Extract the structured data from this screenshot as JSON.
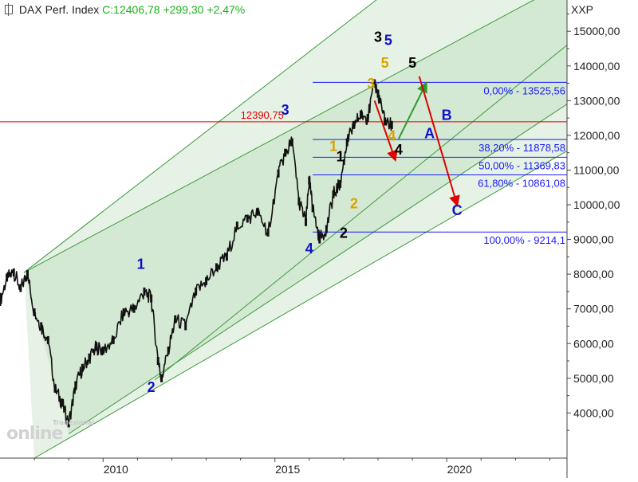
{
  "header": {
    "instrument": "DAX Perf. Index",
    "quote": "C:12406,78 +299,30 +2,47%"
  },
  "watermark": {
    "brand": "online",
    "tag": "Tradesignal"
  },
  "axis_unit": "XXP",
  "colors": {
    "background": "#ffffff",
    "channel_fill": "#e6f2e6",
    "channel_line": "#3c9a3c",
    "fib_line": "#1a1aff",
    "fib_text": "#1a1aff",
    "resistance_line": "#e00000",
    "wave_blue": "#1010c8",
    "wave_black": "#000000",
    "wave_gold": "#d9a200",
    "arrow_red": "#e00000",
    "arrow_green": "#2d9a2d",
    "header_quote": "#19b219"
  },
  "chart_data": {
    "type": "line",
    "title": "DAX Perf. Index",
    "xlabel": "",
    "ylabel": "",
    "xlim": [
      2007.0,
      2023.5
    ],
    "ylim": [
      2700,
      15900
    ],
    "grid": false,
    "x_ticks": [
      2010,
      2015,
      2020
    ],
    "x_tick_labels": [
      "2010",
      "2015",
      "2020"
    ],
    "y_ticks": [
      4000,
      5000,
      6000,
      7000,
      8000,
      9000,
      10000,
      11000,
      12000,
      13000,
      14000,
      15000
    ],
    "y_tick_labels": [
      "4000,00",
      "5000,00",
      "6000,00",
      "7000,00",
      "8000,00",
      "9000,00",
      "10000,00",
      "11000,00",
      "12000,00",
      "13000,00",
      "14000,00",
      "15000,00"
    ],
    "series": [
      {
        "name": "",
        "x": [
          2007.0,
          2007.2,
          2007.4,
          2007.6,
          2007.8,
          2008.0,
          2008.2,
          2008.4,
          2008.6,
          2008.8,
          2009.0,
          2009.2,
          2009.4,
          2009.6,
          2009.8,
          2010.0,
          2010.3,
          2010.6,
          2010.9,
          2011.2,
          2011.4,
          2011.6,
          2011.7,
          2011.9,
          2012.1,
          2012.4,
          2012.7,
          2013.0,
          2013.3,
          2013.6,
          2013.9,
          2014.2,
          2014.5,
          2014.8,
          2015.1,
          2015.3,
          2015.5,
          2015.7,
          2015.9,
          2016.0,
          2016.1,
          2016.3,
          2016.5,
          2016.7,
          2016.9,
          2017.1,
          2017.3,
          2017.5,
          2017.7,
          2017.9,
          2018.0,
          2018.2,
          2018.4
        ],
        "values": [
          7200,
          7900,
          8050,
          7600,
          8000,
          6900,
          6500,
          6100,
          4700,
          4300,
          3700,
          4800,
          5300,
          5600,
          5900,
          5800,
          6100,
          6900,
          7000,
          7500,
          7300,
          5500,
          5000,
          5800,
          6700,
          6500,
          7500,
          7800,
          8200,
          8500,
          9400,
          9600,
          9800,
          9200,
          10900,
          11500,
          11800,
          10100,
          9500,
          10700,
          9900,
          9000,
          9300,
          10300,
          10600,
          11800,
          12300,
          12600,
          12500,
          13500,
          13200,
          12400,
          12300
        ]
      }
    ],
    "channel_lines": [
      {
        "x": [
          2007.7,
          2015.9
        ],
        "y": [
          8050,
          12390
        ]
      },
      {
        "x": [
          2007.7,
          2018.6
        ],
        "y": [
          8050,
          16400
        ]
      },
      {
        "x": [
          2009.0,
          2023.5
        ],
        "y": [
          3400,
          12900
        ]
      },
      {
        "x": [
          2011.5,
          2023.5
        ],
        "y": [
          4950,
          14600
        ]
      },
      {
        "x": [
          2008.0,
          2023.5
        ],
        "y": [
          2700,
          11550
        ]
      }
    ],
    "resistance": {
      "label": "12390,75",
      "value": 12390.75
    },
    "fibonacci": {
      "x_start": 2016.1,
      "levels": [
        {
          "label": "0,00% - 13525,56",
          "value": 13525.56
        },
        {
          "label": "38,20% - 11878,58",
          "value": 11878.58
        },
        {
          "label": "50,00% - 11369,83",
          "value": 11369.83
        },
        {
          "label": "61,80% - 10861,08",
          "value": 10861.08
        },
        {
          "label": "100,00% - 9214,1",
          "value": 9214.1
        }
      ]
    },
    "wave_labels": [
      {
        "text": "1",
        "x": 2011.1,
        "y": 8150,
        "color": "blue"
      },
      {
        "text": "2",
        "x": 2011.4,
        "y": 4600,
        "color": "blue"
      },
      {
        "text": "3",
        "x": 2015.3,
        "y": 12600,
        "color": "blue"
      },
      {
        "text": "4",
        "x": 2016.0,
        "y": 8600,
        "color": "blue"
      },
      {
        "text": "5",
        "x": 2018.3,
        "y": 14600,
        "color": "blue"
      },
      {
        "text": "1",
        "x": 2016.9,
        "y": 11250,
        "color": "black"
      },
      {
        "text": "2",
        "x": 2017.0,
        "y": 9050,
        "color": "black"
      },
      {
        "text": "3",
        "x": 2018.0,
        "y": 14700,
        "color": "black"
      },
      {
        "text": "4",
        "x": 2018.6,
        "y": 11450,
        "color": "black"
      },
      {
        "text": "5",
        "x": 2019.0,
        "y": 13950,
        "color": "black"
      },
      {
        "text": "1",
        "x": 2016.7,
        "y": 11550,
        "color": "gold"
      },
      {
        "text": "2",
        "x": 2017.3,
        "y": 9900,
        "color": "gold"
      },
      {
        "text": "3",
        "x": 2017.8,
        "y": 13350,
        "color": "gold"
      },
      {
        "text": "4",
        "x": 2018.4,
        "y": 11850,
        "color": "gold"
      },
      {
        "text": "5",
        "x": 2018.2,
        "y": 13950,
        "color": "gold"
      },
      {
        "text": "A",
        "x": 2019.5,
        "y": 11920,
        "color": "blue"
      },
      {
        "text": "B",
        "x": 2020.0,
        "y": 12440,
        "color": "blue"
      },
      {
        "text": "C",
        "x": 2020.3,
        "y": 9700,
        "color": "blue"
      }
    ],
    "arrows": [
      {
        "x1": 2017.9,
        "y1": 13000,
        "x2": 2018.5,
        "y2": 11300,
        "color": "red"
      },
      {
        "x1": 2018.6,
        "y1": 11900,
        "x2": 2019.4,
        "y2": 13500,
        "color": "green"
      },
      {
        "x1": 2019.2,
        "y1": 13700,
        "x2": 2020.3,
        "y2": 10000,
        "color": "red"
      }
    ]
  }
}
